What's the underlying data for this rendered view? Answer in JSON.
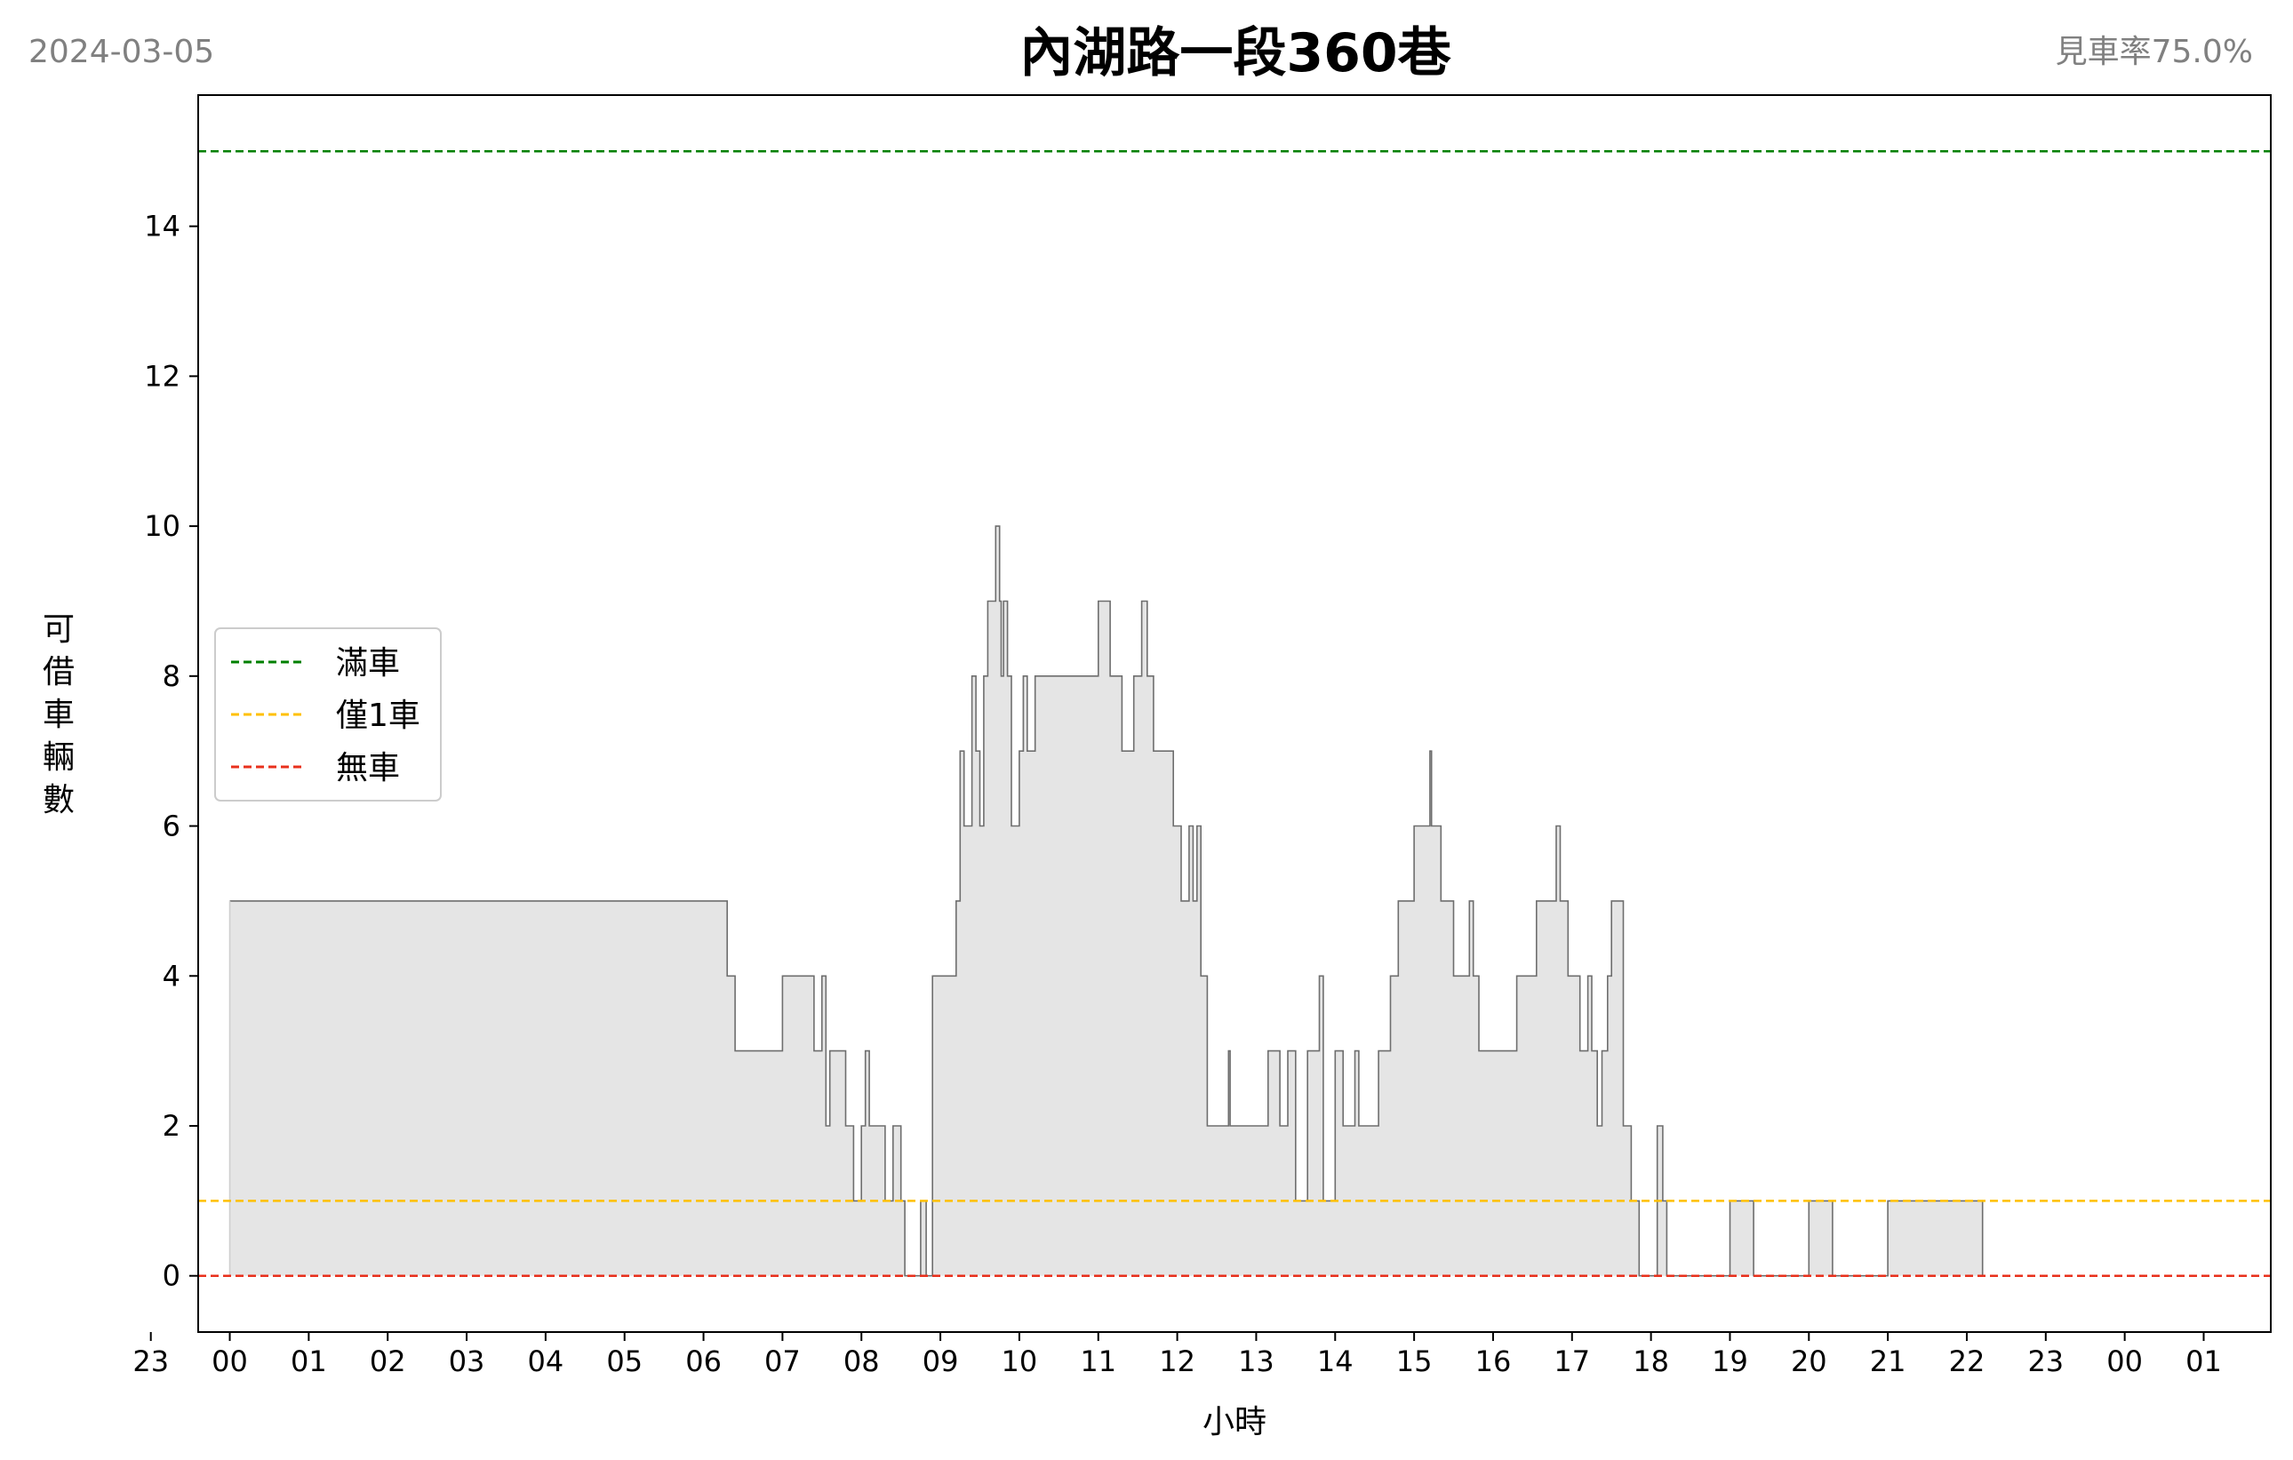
{
  "header": {
    "date": "2024-03-05",
    "title": "內湖路一段360巷",
    "availability": "見車率75.0%"
  },
  "legend": {
    "placement": "center-left",
    "items": [
      {
        "label": "滿車",
        "color": "#008000",
        "value": 15
      },
      {
        "label": "僅1車",
        "color": "#FFC000",
        "value": 1
      },
      {
        "label": "無車",
        "color": "#E8301C",
        "value": 0
      }
    ]
  },
  "chart_data": {
    "type": "area",
    "title": "內湖路一段360巷",
    "xlabel": "小時",
    "ylabel": "可借車輛數",
    "xlim": [
      -0.4,
      25.85
    ],
    "ylim": [
      -0.75,
      15.75
    ],
    "x_tick_labels": [
      "23",
      "00",
      "01",
      "02",
      "03",
      "04",
      "05",
      "06",
      "07",
      "08",
      "09",
      "10",
      "11",
      "12",
      "13",
      "14",
      "15",
      "16",
      "17",
      "18",
      "19",
      "20",
      "21",
      "22",
      "23",
      "00",
      "01"
    ],
    "x_tick_positions": [
      -1,
      0,
      1,
      2,
      3,
      4,
      5,
      6,
      7,
      8,
      9,
      10,
      11,
      12,
      13,
      14,
      15,
      16,
      17,
      18,
      19,
      20,
      21,
      22,
      23,
      24,
      25
    ],
    "y_ticks": [
      0,
      2,
      4,
      6,
      8,
      10,
      12,
      14
    ],
    "reference_lines": [
      {
        "name": "滿車",
        "y": 15,
        "color": "#008000"
      },
      {
        "name": "僅1車",
        "y": 1,
        "color": "#FFC000"
      },
      {
        "name": "無車",
        "y": 0,
        "color": "#E8301C"
      }
    ],
    "fill_color": "#e5e5e5",
    "line_color": "#6e6e6e",
    "series": [
      {
        "x": [
          0,
          6.3,
          6.4,
          7.0,
          7.4,
          7.5,
          7.55,
          7.6,
          7.8,
          7.9,
          8.0,
          8.05,
          8.1,
          8.3,
          8.4,
          8.5,
          8.55,
          8.75,
          8.82,
          8.9,
          9.2,
          9.25,
          9.3,
          9.4,
          9.45,
          9.5,
          9.55,
          9.6,
          9.7,
          9.75,
          9.77,
          9.8,
          9.85,
          9.9,
          10.0,
          10.05,
          10.1,
          10.2,
          11.0,
          11.15,
          11.3,
          11.45,
          11.55,
          11.62,
          11.64,
          11.7,
          11.95,
          12.05,
          12.15,
          12.2,
          12.25,
          12.3,
          12.38,
          12.42,
          12.65,
          12.67,
          12.7,
          13.15,
          13.3,
          13.4,
          13.5,
          13.55,
          13.65,
          13.8,
          13.85,
          13.9,
          14.0,
          14.1,
          14.25,
          14.3,
          14.55,
          14.7,
          14.8,
          15.0,
          15.2,
          15.22,
          15.32,
          15.34,
          15.5,
          15.7,
          15.75,
          15.82,
          15.9,
          16.3,
          16.55,
          16.8,
          16.85,
          16.95,
          17.1,
          17.2,
          17.25,
          17.32,
          17.38,
          17.45,
          17.5,
          17.65,
          17.75,
          17.85,
          18.08,
          18.15,
          18.18,
          18.2,
          18.35,
          19.0,
          19.3,
          20.0,
          20.3,
          21.0,
          22.2
        ],
        "y": [
          5,
          4,
          3,
          4,
          3,
          4,
          2,
          3,
          2,
          1,
          2,
          3,
          2,
          1,
          2,
          1,
          0,
          1,
          0,
          4,
          5,
          7,
          6,
          8,
          7,
          6,
          8,
          9,
          10,
          9,
          8,
          9,
          8,
          6,
          7,
          8,
          7,
          8,
          9,
          8,
          7,
          8,
          9,
          8,
          8,
          7,
          6,
          5,
          6,
          5,
          6,
          4,
          2,
          2,
          3,
          2,
          2,
          3,
          2,
          3,
          1,
          1,
          3,
          4,
          1,
          1,
          3,
          2,
          3,
          2,
          3,
          4,
          5,
          6,
          7,
          6,
          6,
          5,
          4,
          5,
          4,
          3,
          3,
          4,
          5,
          6,
          5,
          4,
          3,
          4,
          3,
          2,
          3,
          4,
          5,
          2,
          1,
          0,
          2,
          1,
          1,
          0,
          0,
          1,
          0,
          1,
          0,
          1,
          0
        ]
      }
    ],
    "x_end": 22.2
  }
}
